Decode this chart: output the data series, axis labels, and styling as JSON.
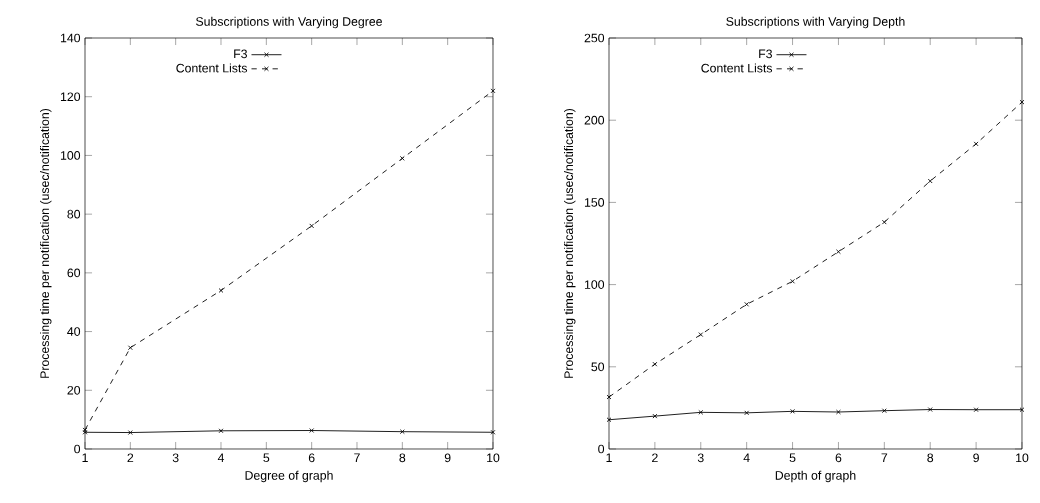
{
  "chart_data": [
    {
      "type": "line",
      "title": "Subscriptions with Varying Degree",
      "xlabel": "Degree of graph",
      "ylabel": "Processing time per notification (usec/notification)",
      "x": [
        1,
        2,
        4,
        6,
        8,
        10
      ],
      "series": [
        {
          "name": "F3",
          "color": "#000000",
          "values": [
            5.7,
            5.6,
            6.2,
            6.3,
            5.9,
            5.7
          ],
          "line_style": "solid",
          "marker": "cross"
        },
        {
          "name": "Content Lists",
          "color": "#000000",
          "values": [
            6.5,
            34.5,
            54,
            76,
            99,
            122
          ],
          "line_style": "dashed",
          "marker": "cross"
        }
      ],
      "xlim": [
        1,
        10
      ],
      "xticks": [
        1,
        2,
        3,
        4,
        5,
        6,
        7,
        8,
        9,
        10
      ],
      "ylim": [
        0,
        140
      ],
      "yticks": [
        0,
        20,
        40,
        60,
        80,
        100,
        120,
        140
      ],
      "legend": "top left",
      "grid": false
    },
    {
      "type": "line",
      "title": "Subscriptions with Varying Depth",
      "xlabel": "Depth of graph",
      "ylabel": "Processing time per notification (usec/notification)",
      "x": [
        1,
        2,
        3,
        4,
        5,
        6,
        7,
        8,
        9,
        10
      ],
      "series": [
        {
          "name": "F3",
          "color": "#000000",
          "values": [
            17.8,
            20,
            22.3,
            22,
            22.9,
            22.5,
            23.3,
            24,
            23.9,
            23.9
          ],
          "line_style": "solid",
          "marker": "cross"
        },
        {
          "name": "Content Lists",
          "color": "#000000",
          "values": [
            31.6,
            51.6,
            69.6,
            88,
            102,
            120,
            138,
            163,
            185.6,
            211
          ],
          "line_style": "dashed",
          "marker": "cross"
        }
      ],
      "xlim": [
        1,
        10
      ],
      "xticks": [
        1,
        2,
        3,
        4,
        5,
        6,
        7,
        8,
        9,
        10
      ],
      "ylim": [
        0,
        250
      ],
      "yticks": [
        0,
        50,
        100,
        150,
        200,
        250
      ],
      "legend": "top left",
      "grid": false
    }
  ]
}
